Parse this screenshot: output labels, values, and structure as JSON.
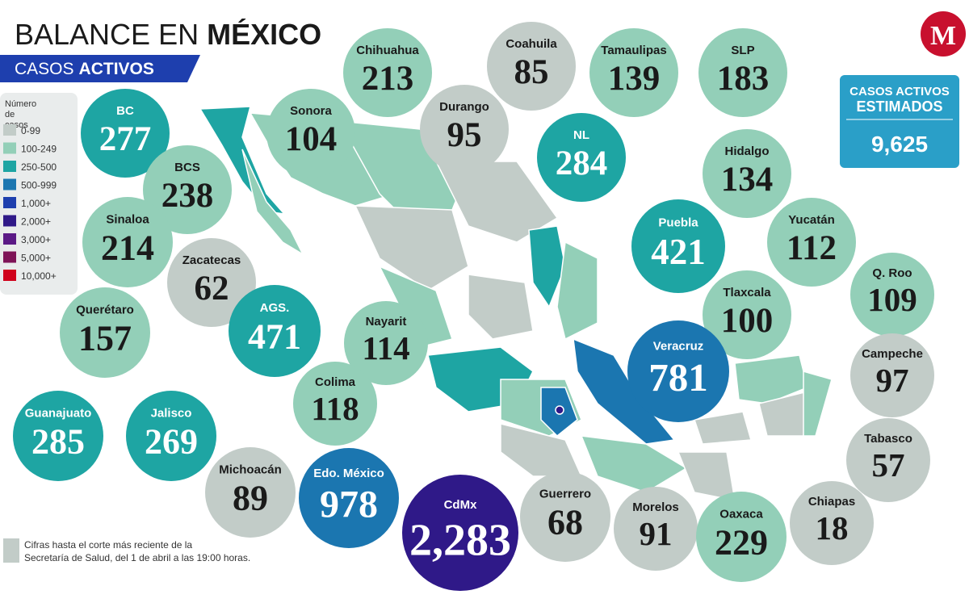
{
  "header": {
    "title_light": "BALANCE EN",
    "title_bold": "MÉXICO",
    "subtitle_light": "CASOS",
    "subtitle_bold": "ACTIVOS"
  },
  "legend": {
    "title": "Número de casos",
    "items": [
      {
        "label": "0-99",
        "color": "#c2ccc8"
      },
      {
        "label": "100-249",
        "color": "#93cfb8"
      },
      {
        "label": "250-500",
        "color": "#1ea5a3"
      },
      {
        "label": "500-999",
        "color": "#1b76b0"
      },
      {
        "label": "1,000+",
        "color": "#1e3fae"
      },
      {
        "label": "2,000+",
        "color": "#2f1988"
      },
      {
        "label": "3,000+",
        "color": "#5b1a86"
      },
      {
        "label": "5,000+",
        "color": "#7e1457"
      },
      {
        "label": "10,000+",
        "color": "#d0021b"
      }
    ]
  },
  "estimate": {
    "title": "CASOS ACTIVOS ESTIMADOS",
    "value": "9,625"
  },
  "logo": "M",
  "footnote": "Cifras hasta el corte más reciente de la Secretaría de Salud, del 1 de abril a las 19:00 horas.",
  "states": [
    {
      "name": "BC",
      "value": "277",
      "color": "#1ea5a3"
    },
    {
      "name": "Sonora",
      "value": "104",
      "color": "#93cfb8"
    },
    {
      "name": "Chihuahua",
      "value": "213",
      "color": "#93cfb8"
    },
    {
      "name": "Coahuila",
      "value": "85",
      "color": "#c2ccc8"
    },
    {
      "name": "Durango",
      "value": "95",
      "color": "#c2ccc8"
    },
    {
      "name": "Tamaulipas",
      "value": "139",
      "color": "#93cfb8"
    },
    {
      "name": "SLP",
      "value": "183",
      "color": "#93cfb8"
    },
    {
      "name": "NL",
      "value": "284",
      "color": "#1ea5a3"
    },
    {
      "name": "Hidalgo",
      "value": "134",
      "color": "#93cfb8"
    },
    {
      "name": "BCS",
      "value": "238",
      "color": "#93cfb8"
    },
    {
      "name": "Sinaloa",
      "value": "214",
      "color": "#93cfb8"
    },
    {
      "name": "Zacatecas",
      "value": "62",
      "color": "#c2ccc8"
    },
    {
      "name": "Puebla",
      "value": "421",
      "color": "#1ea5a3"
    },
    {
      "name": "Yucatán",
      "value": "112",
      "color": "#93cfb8"
    },
    {
      "name": "AGS.",
      "value": "471",
      "color": "#1ea5a3"
    },
    {
      "name": "Nayarit",
      "value": "114",
      "color": "#93cfb8"
    },
    {
      "name": "Querétaro",
      "value": "157",
      "color": "#93cfb8"
    },
    {
      "name": "Tlaxcala",
      "value": "100",
      "color": "#93cfb8"
    },
    {
      "name": "Q. Roo",
      "value": "109",
      "color": "#93cfb8"
    },
    {
      "name": "Veracruz",
      "value": "781",
      "color": "#1b76b0"
    },
    {
      "name": "Campeche",
      "value": "97",
      "color": "#c2ccc8"
    },
    {
      "name": "Colima",
      "value": "118",
      "color": "#93cfb8"
    },
    {
      "name": "Guanajuato",
      "value": "285",
      "color": "#1ea5a3"
    },
    {
      "name": "Jalisco",
      "value": "269",
      "color": "#1ea5a3"
    },
    {
      "name": "Tabasco",
      "value": "57",
      "color": "#c2ccc8"
    },
    {
      "name": "Michoacán",
      "value": "89",
      "color": "#c2ccc8"
    },
    {
      "name": "Edo. México",
      "value": "978",
      "color": "#1b76b0"
    },
    {
      "name": "CdMx",
      "value": "2,283",
      "color": "#2f1988"
    },
    {
      "name": "Guerrero",
      "value": "68",
      "color": "#c2ccc8"
    },
    {
      "name": "Morelos",
      "value": "91",
      "color": "#c2ccc8"
    },
    {
      "name": "Oaxaca",
      "value": "229",
      "color": "#93cfb8"
    },
    {
      "name": "Chiapas",
      "value": "18",
      "color": "#c2ccc8"
    }
  ]
}
